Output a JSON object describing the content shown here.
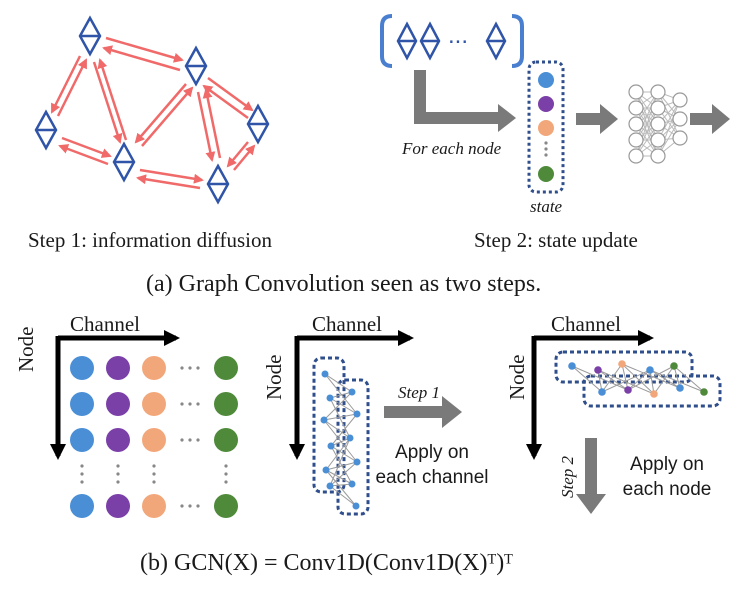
{
  "part_a": {
    "step1_label": "Step 1: information diffusion",
    "step2_label": "Step 2: state update",
    "for_each_node": "For each node",
    "state_label": "state",
    "ellipsis": "...",
    "caption": "(a) Graph Convolution seen as two steps."
  },
  "part_b": {
    "axis_channel": "Channel",
    "axis_node": "Node",
    "step1_arrow": "Step 1",
    "step2_arrow": "Step 2",
    "apply_channel_line1": "Apply on",
    "apply_channel_line2": "each channel",
    "apply_node_line1": "Apply on",
    "apply_node_line2": "each node",
    "caption": "(b) GCN(X) = Conv1D(Conv1D(X)ᵀ)ᵀ"
  },
  "colors": {
    "node_blue": "#4a8fd6",
    "node_purple": "#7b3fa8",
    "node_orange": "#f2a77a",
    "node_green": "#4e8a3a",
    "edge_red": "#f06a6a",
    "diamond_blue": "#2f54a8",
    "dashed_box": "#2f4e8c",
    "arrow_gray": "#7a7a7a"
  }
}
